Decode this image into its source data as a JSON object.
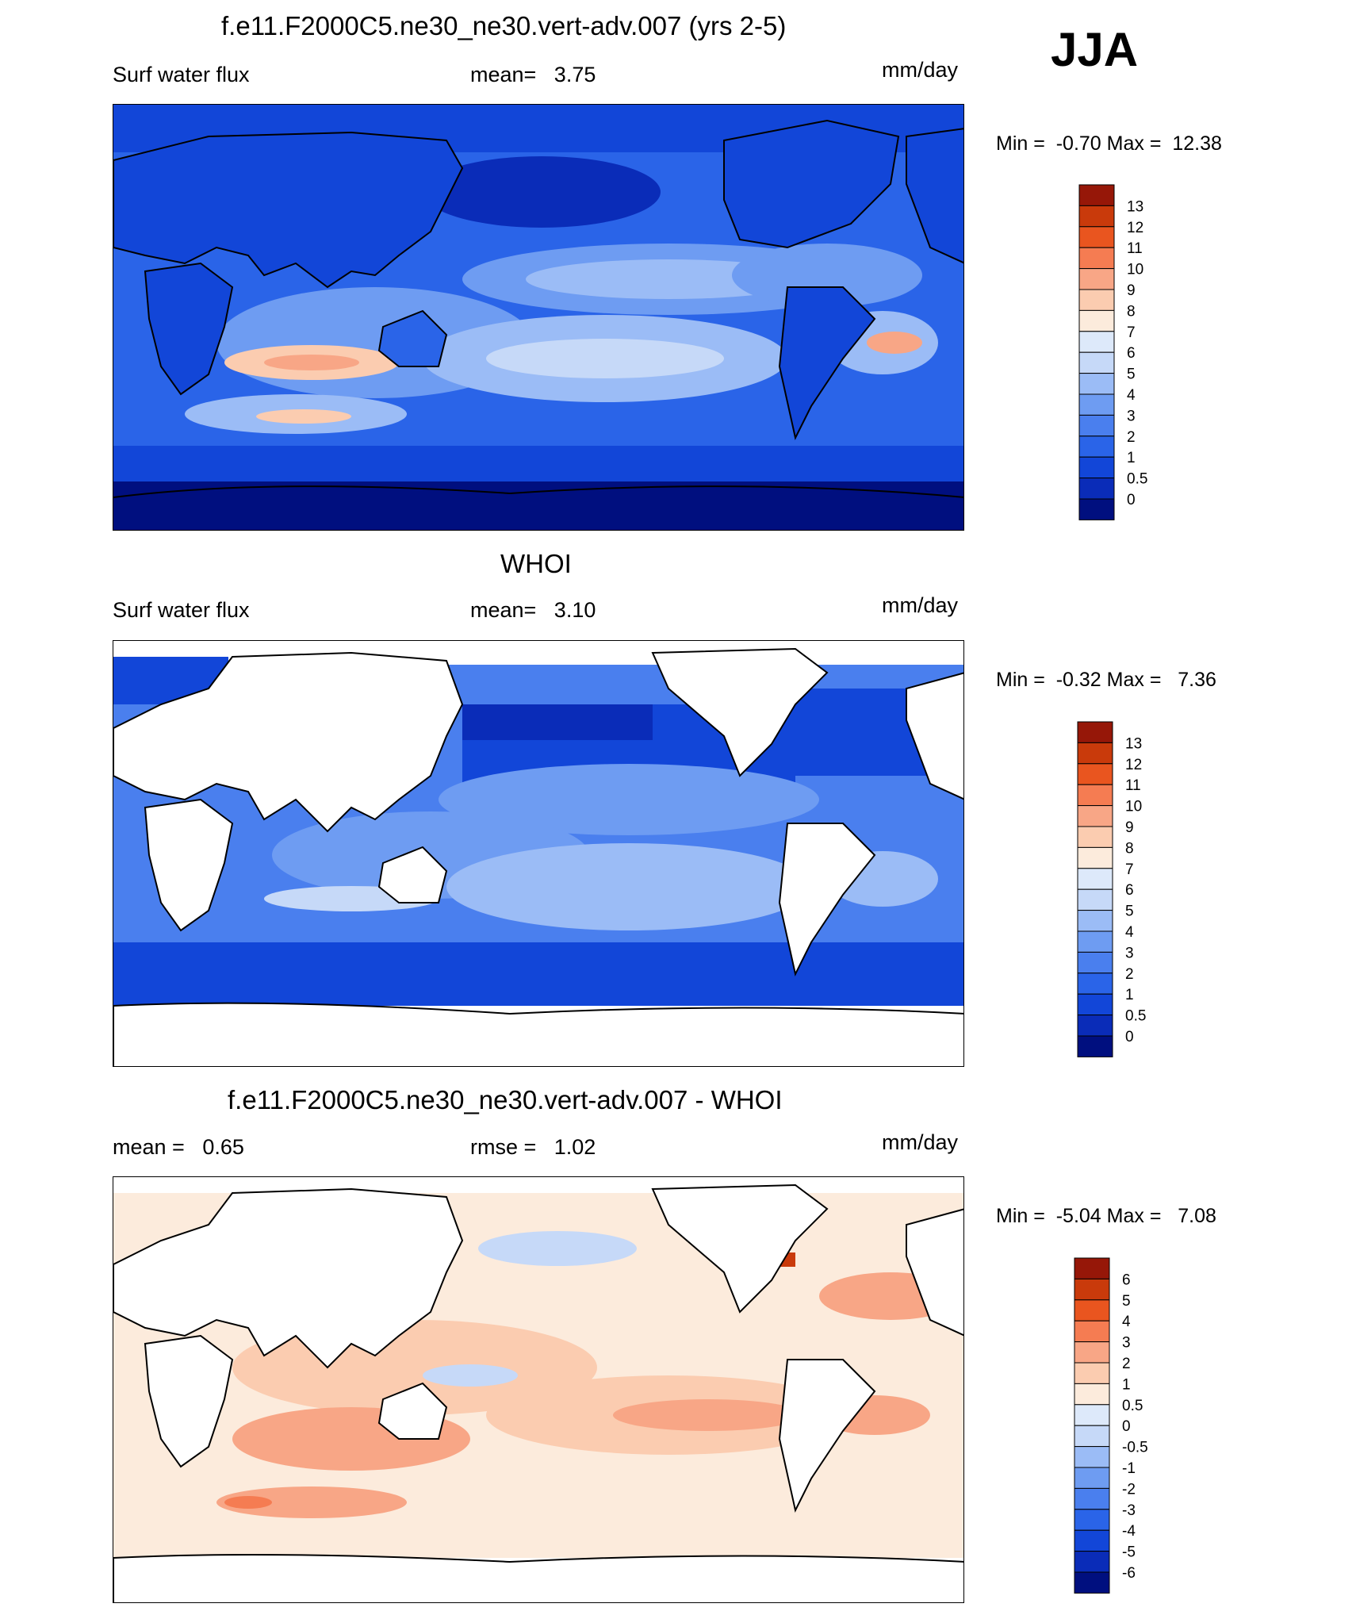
{
  "season": "JJA",
  "units": "mm/day",
  "colors": {
    "abs_scale": [
      "#000f7f",
      "#0a2cb8",
      "#1246d8",
      "#2a64e8",
      "#4a7fee",
      "#6e9cf2",
      "#9bbcf6",
      "#c6d9f8",
      "#dde9fa",
      "#fcebdc",
      "#fbccb0",
      "#f8a686",
      "#f57c52",
      "#e9551f",
      "#c93a0b",
      "#961708"
    ],
    "diff_scale": [
      "#000f7f",
      "#0a2cb8",
      "#1246d8",
      "#2a64e8",
      "#4a7fee",
      "#6e9cf2",
      "#9bbcf6",
      "#c6d9f8",
      "#dde9fa",
      "#fcebdc",
      "#fbccb0",
      "#f8a686",
      "#f57c52",
      "#e9551f",
      "#c93a0b",
      "#961708"
    ]
  },
  "chart_data": [
    {
      "type": "heatmap",
      "title": "f.e11.F2000C5.ne30_ne30.vert-adv.007 (yrs 2-5)",
      "left_label": "Surf water flux",
      "center_label": "mean=   3.75",
      "units": "mm/day",
      "minmax": "Min =  -0.70 Max =  12.38",
      "levels": [
        "13",
        "12",
        "11",
        "10",
        "9",
        "8",
        "7",
        "6",
        "5",
        "4",
        "3",
        "2",
        "1",
        "0.5",
        "0"
      ],
      "mean": 3.75,
      "min": -0.7,
      "max": 12.38
    },
    {
      "type": "heatmap",
      "title": "WHOI",
      "left_label": "Surf water flux",
      "center_label": "mean=   3.10",
      "units": "mm/day",
      "minmax": "Min =  -0.32 Max =   7.36",
      "levels": [
        "13",
        "12",
        "11",
        "10",
        "9",
        "8",
        "7",
        "6",
        "5",
        "4",
        "3",
        "2",
        "1",
        "0.5",
        "0"
      ],
      "mean": 3.1,
      "min": -0.32,
      "max": 7.36
    },
    {
      "type": "heatmap",
      "title": "f.e11.F2000C5.ne30_ne30.vert-adv.007 - WHOI",
      "left_label": "mean =   0.65",
      "center_label": "rmse =   1.02",
      "units": "mm/day",
      "minmax": "Min =  -5.04 Max =   7.08",
      "levels": [
        "6",
        "5",
        "4",
        "3",
        "2",
        "1",
        "0.5",
        "0",
        "-0.5",
        "-1",
        "-2",
        "-3",
        "-4",
        "-5",
        "-6"
      ],
      "mean": 0.65,
      "rmse": 1.02,
      "min": -5.04,
      "max": 7.08
    }
  ]
}
